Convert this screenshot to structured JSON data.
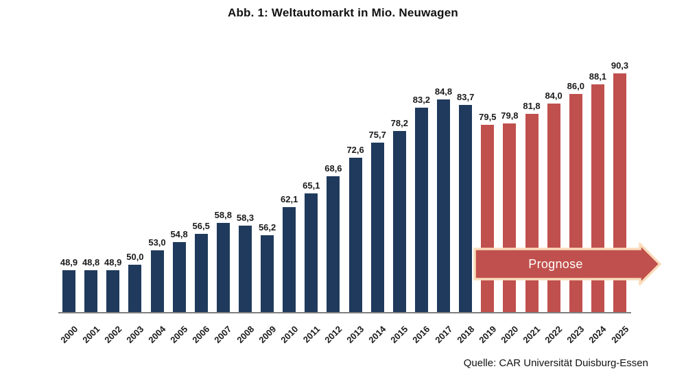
{
  "page": {
    "title": "Abb. 1: Weltautomarkt in Mio. Neuwagen",
    "source": "Quelle: CAR Universität Duisburg-Essen"
  },
  "colors": {
    "actual_bar": "#1F3A5C",
    "forecast_bar": "#C0504D",
    "arrow_fill": "#C0504D",
    "arrow_border": "#F9DCBB",
    "axis_line": "#7F7F7F",
    "label_text": "#1A1A1A"
  },
  "chart_data": {
    "type": "bar",
    "title": "Abb. 1: Weltautomarkt in Mio. Neuwagen",
    "categories": [
      "2000",
      "2001",
      "2002",
      "2003",
      "2004",
      "2005",
      "2006",
      "2007",
      "2008",
      "2009",
      "2010",
      "2011",
      "2012",
      "2013",
      "2014",
      "2015",
      "2016",
      "2017",
      "2018",
      "2019",
      "2020",
      "2021",
      "2022",
      "2023",
      "2024",
      "2025"
    ],
    "values": [
      48.9,
      48.8,
      48.9,
      50.0,
      53.0,
      54.8,
      56.5,
      58.8,
      58.3,
      56.2,
      62.1,
      65.1,
      68.6,
      72.6,
      75.7,
      78.2,
      83.2,
      84.8,
      83.7,
      79.5,
      79.8,
      81.8,
      84.0,
      86.0,
      88.1,
      90.3
    ],
    "display_labels": [
      "48,9",
      "48,8",
      "48,9",
      "50,0",
      "53,0",
      "54,8",
      "56,5",
      "58,8",
      "58,3",
      "56,2",
      "62,1",
      "65,1",
      "68,6",
      "72,6",
      "75,7",
      "78,2",
      "83,2",
      "84,8",
      "83,7",
      "79,5",
      "79,8",
      "81,8",
      "84,0",
      "86,0",
      "88,1",
      "90,3"
    ],
    "forecast_start_index": 19,
    "ylim": [
      40,
      95
    ],
    "grid": false,
    "legend": false,
    "xlabel": "",
    "ylabel": "",
    "annotation": {
      "label": "Prognose"
    },
    "source": "Quelle: CAR Universität Duisburg-Essen"
  }
}
